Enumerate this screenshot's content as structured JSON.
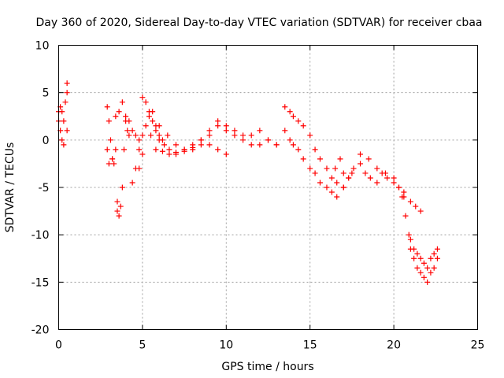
{
  "chart_data": {
    "type": "scatter",
    "title": "Day 360 of 2020, Sidereal Day-to-day VTEC variation (SDTVAR) for receiver cbaa",
    "xlabel": "GPS time / hours",
    "ylabel": "SDTVAR / TECUs",
    "xlim": [
      0,
      25
    ],
    "ylim": [
      -20,
      10
    ],
    "xticks": [
      "0",
      "5",
      "10",
      "15",
      "20",
      "25"
    ],
    "yticks": [
      "10",
      "5",
      "0",
      "-5",
      "-10",
      "-15",
      "-20"
    ],
    "grid": true,
    "marker": "plus",
    "color": "#ff0000",
    "series": [
      {
        "name": "cbaa",
        "x": [
          0.0,
          0.1,
          0.2,
          0.3,
          0.4,
          0.5,
          0.5,
          0.5,
          0.3,
          0.2,
          0.1,
          0.0,
          2.9,
          3.0,
          3.1,
          3.2,
          3.3,
          3.4,
          3.5,
          3.5,
          3.6,
          3.7,
          3.8,
          3.9,
          4.0,
          4.1,
          4.2,
          2.9,
          3.0,
          3.2,
          3.4,
          3.6,
          3.8,
          4.0,
          4.2,
          4.4,
          4.6,
          4.8,
          5.0,
          5.2,
          5.4,
          5.6,
          5.8,
          6.0,
          6.2,
          4.4,
          4.6,
          4.8,
          5.0,
          5.2,
          5.4,
          5.6,
          5.8,
          6.0,
          6.3,
          6.6,
          7.0,
          7.5,
          8.0,
          8.5,
          9.0,
          9.5,
          10.0,
          10.5,
          11.0,
          11.5,
          12.0,
          12.5,
          13.0,
          4.8,
          5.0,
          5.5,
          6.0,
          6.5,
          7.0,
          7.5,
          8.0,
          8.5,
          9.0,
          9.5,
          10.0,
          10.5,
          11.0,
          11.5,
          12.0,
          12.5,
          13.0,
          5.8,
          6.2,
          6.6,
          7.0,
          7.5,
          8.0,
          8.5,
          9.0,
          9.5,
          10.0,
          13.5,
          13.8,
          14.0,
          14.3,
          14.6,
          15.0,
          15.3,
          15.6,
          16.0,
          16.3,
          16.6,
          17.0,
          17.3,
          13.5,
          13.8,
          14.0,
          14.3,
          14.6,
          15.0,
          15.3,
          15.6,
          16.0,
          16.3,
          16.6,
          16.5,
          16.8,
          17.0,
          17.3,
          17.6,
          18.0,
          18.3,
          18.6,
          19.0,
          19.3,
          19.6,
          20.0,
          20.3,
          20.6,
          17.0,
          17.5,
          18.0,
          18.5,
          19.0,
          19.5,
          20.0,
          20.3,
          20.6,
          21.0,
          21.3,
          21.6,
          20.5,
          20.7,
          20.9,
          21.0,
          21.2,
          21.4,
          21.6,
          21.8,
          22.0,
          22.2,
          22.4,
          22.6,
          21.0,
          21.2,
          21.4,
          21.6,
          21.8,
          22.0,
          22.2,
          22.4,
          22.6
        ],
        "y": [
          3.0,
          3.5,
          3.0,
          2.0,
          4.0,
          6.0,
          5.0,
          1.0,
          -0.5,
          0.0,
          1.0,
          2.0,
          3.5,
          2.0,
          0.0,
          -2.0,
          -2.5,
          -1.0,
          -6.5,
          -7.5,
          -8.0,
          -7.0,
          -5.0,
          -1.0,
          2.0,
          1.0,
          0.5,
          -1.0,
          -2.5,
          -2.0,
          2.5,
          3.0,
          4.0,
          2.5,
          2.0,
          1.0,
          0.5,
          0.0,
          4.5,
          4.0,
          3.0,
          2.0,
          1.0,
          0.5,
          0.0,
          -4.5,
          -3.0,
          -1.0,
          0.5,
          1.5,
          2.5,
          3.0,
          1.5,
          0.0,
          -0.5,
          -1.0,
          -1.5,
          -1.2,
          -1.0,
          -0.5,
          0.5,
          1.5,
          1.0,
          0.5,
          0.0,
          -0.5,
          -0.5,
          0.0,
          -0.5,
          -3.0,
          -1.5,
          0.5,
          1.5,
          0.5,
          -0.5,
          -1.0,
          -0.8,
          0.0,
          1.0,
          2.0,
          1.5,
          1.0,
          0.5,
          0.5,
          1.0,
          0.0,
          -0.5,
          -1.0,
          -1.2,
          -1.5,
          -1.3,
          -1.0,
          -0.5,
          0.0,
          -0.5,
          -1.0,
          -1.5,
          3.5,
          3.0,
          2.5,
          2.0,
          1.5,
          0.5,
          -1.0,
          -2.0,
          -3.0,
          -4.0,
          -4.5,
          -5.0,
          -4.0,
          1.0,
          0.0,
          -0.5,
          -1.0,
          -2.0,
          -3.0,
          -3.5,
          -4.5,
          -5.0,
          -5.5,
          -6.0,
          -3.0,
          -2.0,
          -3.5,
          -4.0,
          -3.0,
          -2.5,
          -3.5,
          -4.0,
          -4.5,
          -3.5,
          -4.0,
          -4.5,
          -5.0,
          -6.0,
          -5.0,
          -3.5,
          -1.5,
          -2.0,
          -3.0,
          -3.5,
          -4.0,
          -5.0,
          -5.5,
          -6.5,
          -7.0,
          -7.5,
          -6.0,
          -8.0,
          -10.0,
          -11.5,
          -12.5,
          -13.5,
          -14.0,
          -14.5,
          -15.0,
          -14.0,
          -13.5,
          -12.5,
          -10.5,
          -11.5,
          -12.0,
          -12.5,
          -13.0,
          -13.5,
          -12.5,
          -12.0,
          -11.5
        ]
      }
    ]
  }
}
